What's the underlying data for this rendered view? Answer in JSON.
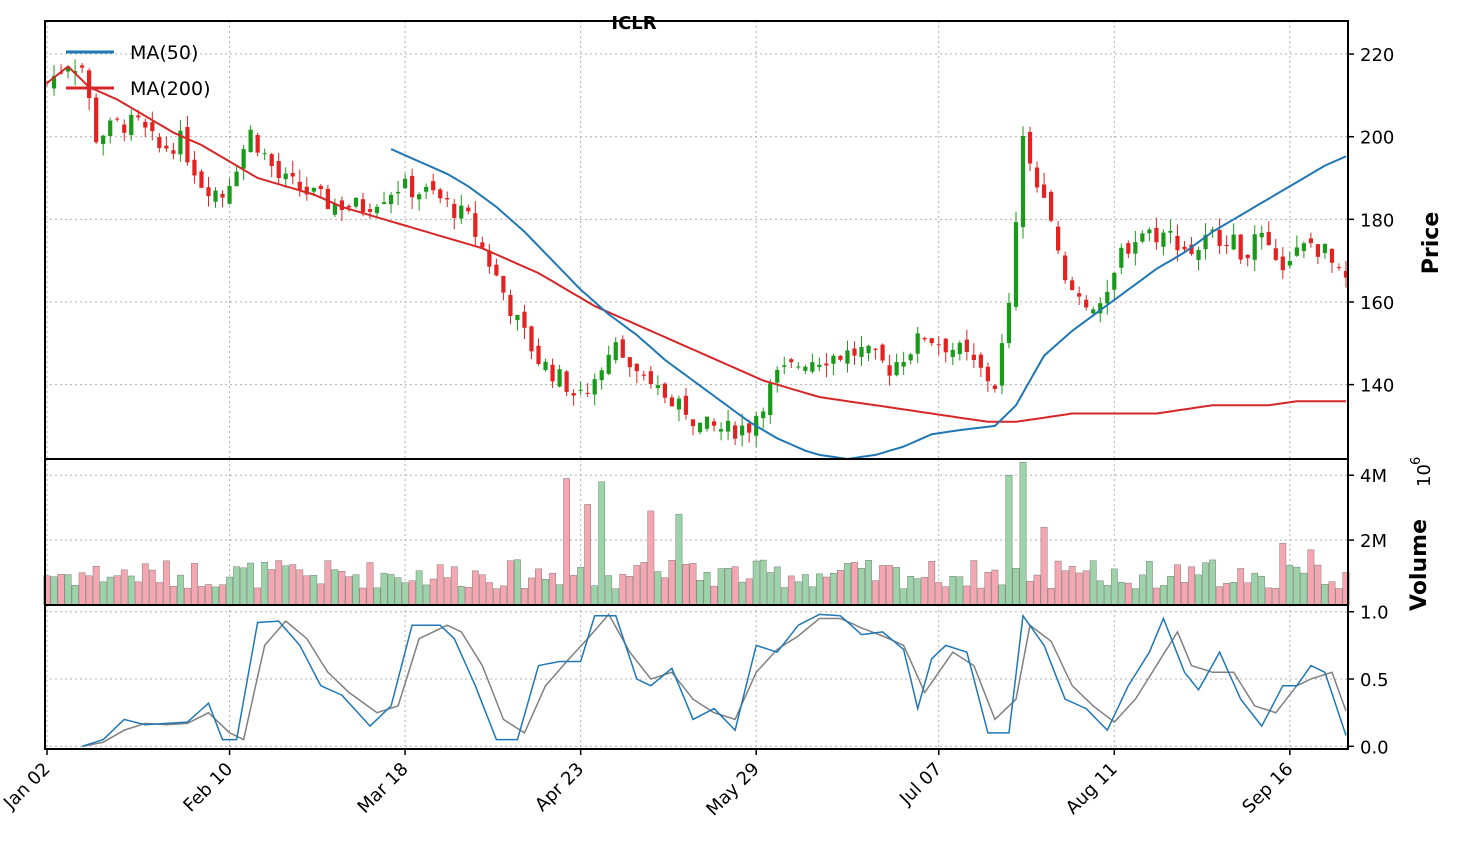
{
  "chart_data": {
    "type": "candlestick",
    "title": "ICLR",
    "colors": {
      "up": "#1a9a1a",
      "down": "#e32222",
      "ma50": "#1f77b4",
      "ma200": "#d62728",
      "vol_up": "#9dd3a8",
      "vol_down": "#f4a7b0",
      "stoch_k": "#1f77b4",
      "stoch_d": "#808080"
    },
    "x_tick_labels": [
      "Jan 02",
      "Feb 10",
      "Mar 18",
      "Apr 23",
      "May 29",
      "Jul 07",
      "Aug 11",
      "Sep 16"
    ],
    "x_tick_index": [
      0,
      26,
      51,
      76,
      101,
      127,
      152,
      177
    ],
    "n_days": 186,
    "price_panel": {
      "ylabel": "Price",
      "ylim": [
        122,
        228
      ],
      "ticks": [
        140,
        160,
        180,
        200,
        220
      ],
      "anchors": [
        [
          0,
          213
        ],
        [
          3,
          218
        ],
        [
          5,
          217
        ],
        [
          7,
          200
        ],
        [
          10,
          203
        ],
        [
          13,
          203
        ],
        [
          16,
          197
        ],
        [
          19,
          199
        ],
        [
          22,
          189
        ],
        [
          25,
          186
        ],
        [
          29,
          201
        ],
        [
          33,
          190
        ],
        [
          40,
          184
        ],
        [
          45,
          183
        ],
        [
          50,
          188
        ],
        [
          55,
          186
        ],
        [
          60,
          180
        ],
        [
          64,
          166
        ],
        [
          67,
          155
        ],
        [
          70,
          146
        ],
        [
          74,
          140
        ],
        [
          77,
          138
        ],
        [
          81,
          149
        ],
        [
          85,
          140
        ],
        [
          90,
          136
        ],
        [
          93,
          130
        ],
        [
          97,
          129
        ],
        [
          100,
          130
        ],
        [
          104,
          142
        ],
        [
          108,
          146
        ],
        [
          112,
          147
        ],
        [
          116,
          148
        ],
        [
          120,
          144
        ],
        [
          125,
          152
        ],
        [
          130,
          148
        ],
        [
          135,
          140
        ],
        [
          137,
          158
        ],
        [
          139,
          200
        ],
        [
          141,
          188
        ],
        [
          143,
          178
        ],
        [
          145,
          164
        ],
        [
          148,
          160
        ],
        [
          151,
          160
        ],
        [
          153,
          172
        ],
        [
          156,
          177
        ],
        [
          160,
          176
        ],
        [
          163,
          172
        ],
        [
          166,
          176
        ],
        [
          168,
          176
        ],
        [
          170,
          172
        ],
        [
          173,
          175
        ],
        [
          175,
          168
        ],
        [
          178,
          172
        ],
        [
          180,
          174
        ],
        [
          182,
          172
        ],
        [
          184,
          166
        ],
        [
          186,
          164
        ]
      ],
      "ma50": [
        [
          0,
          null
        ],
        [
          49,
          197
        ],
        [
          53,
          194
        ],
        [
          57,
          191
        ],
        [
          60,
          188
        ],
        [
          64,
          183
        ],
        [
          68,
          177
        ],
        [
          72,
          170
        ],
        [
          76,
          163
        ],
        [
          80,
          157
        ],
        [
          84,
          152
        ],
        [
          88,
          146
        ],
        [
          92,
          141
        ],
        [
          96,
          136
        ],
        [
          100,
          131
        ],
        [
          104,
          127
        ],
        [
          108,
          124
        ],
        [
          110,
          123
        ],
        [
          114,
          122
        ],
        [
          118,
          123
        ],
        [
          122,
          125
        ],
        [
          126,
          128
        ],
        [
          130,
          129
        ],
        [
          135,
          130
        ],
        [
          138,
          135
        ],
        [
          142,
          147
        ],
        [
          146,
          153
        ],
        [
          150,
          158
        ],
        [
          154,
          163
        ],
        [
          158,
          168
        ],
        [
          162,
          172
        ],
        [
          166,
          177
        ],
        [
          170,
          181
        ],
        [
          174,
          185
        ],
        [
          178,
          189
        ],
        [
          182,
          193
        ],
        [
          186,
          196
        ]
      ],
      "ma200": [
        [
          0,
          213
        ],
        [
          3,
          217
        ],
        [
          6,
          212
        ],
        [
          10,
          209
        ],
        [
          14,
          205
        ],
        [
          18,
          201
        ],
        [
          22,
          198
        ],
        [
          26,
          194
        ],
        [
          30,
          190
        ],
        [
          34,
          188
        ],
        [
          38,
          186
        ],
        [
          42,
          183
        ],
        [
          46,
          181
        ],
        [
          50,
          179
        ],
        [
          54,
          177
        ],
        [
          58,
          175
        ],
        [
          62,
          173
        ],
        [
          66,
          170
        ],
        [
          70,
          167
        ],
        [
          74,
          163
        ],
        [
          78,
          159
        ],
        [
          82,
          156
        ],
        [
          86,
          153
        ],
        [
          90,
          150
        ],
        [
          94,
          147
        ],
        [
          98,
          144
        ],
        [
          102,
          141
        ],
        [
          106,
          139
        ],
        [
          110,
          137
        ],
        [
          114,
          136
        ],
        [
          118,
          135
        ],
        [
          122,
          134
        ],
        [
          126,
          133
        ],
        [
          130,
          132
        ],
        [
          134,
          131
        ],
        [
          138,
          131
        ],
        [
          142,
          132
        ],
        [
          146,
          133
        ],
        [
          150,
          133
        ],
        [
          154,
          133
        ],
        [
          158,
          133
        ],
        [
          162,
          134
        ],
        [
          166,
          135
        ],
        [
          170,
          135
        ],
        [
          174,
          135
        ],
        [
          178,
          136
        ],
        [
          182,
          136
        ],
        [
          186,
          136
        ]
      ],
      "legend": [
        "MA(50)",
        "MA(200)"
      ]
    },
    "volume_panel": {
      "ylabel": "Volume",
      "multiplier_label": "10",
      "multiplier_exponent": "6",
      "ylim": [
        0,
        4.5
      ],
      "ticks": [
        2,
        4
      ],
      "tick_labels": [
        "2M",
        "4M"
      ],
      "spikes": [
        [
          74,
          3.9
        ],
        [
          77,
          3.1
        ],
        [
          79,
          3.8
        ],
        [
          86,
          2.9
        ],
        [
          90,
          2.8
        ],
        [
          137,
          4.0
        ],
        [
          139,
          4.4
        ],
        [
          142,
          2.4
        ],
        [
          176,
          1.9
        ],
        [
          180,
          1.7
        ]
      ]
    },
    "oscillator_panel": {
      "ylim": [
        -0.02,
        1.05
      ],
      "ticks": [
        0.0,
        0.5,
        1.0
      ],
      "tick_labels": [
        "0.0",
        "0.5",
        "1.0"
      ],
      "k_anchors": [
        [
          5,
          0.0
        ],
        [
          8,
          0.05
        ],
        [
          11,
          0.2
        ],
        [
          14,
          0.16
        ],
        [
          17,
          0.17
        ],
        [
          20,
          0.18
        ],
        [
          23,
          0.32
        ],
        [
          25,
          0.05
        ],
        [
          27,
          0.05
        ],
        [
          30,
          0.92
        ],
        [
          33,
          0.93
        ],
        [
          36,
          0.75
        ],
        [
          39,
          0.45
        ],
        [
          42,
          0.38
        ],
        [
          46,
          0.15
        ],
        [
          49,
          0.3
        ],
        [
          52,
          0.9
        ],
        [
          56,
          0.9
        ],
        [
          58,
          0.8
        ],
        [
          61,
          0.45
        ],
        [
          64,
          0.05
        ],
        [
          67,
          0.05
        ],
        [
          70,
          0.6
        ],
        [
          73,
          0.63
        ],
        [
          76,
          0.63
        ],
        [
          78,
          0.97
        ],
        [
          81,
          0.97
        ],
        [
          84,
          0.5
        ],
        [
          86,
          0.45
        ],
        [
          89,
          0.58
        ],
        [
          92,
          0.2
        ],
        [
          95,
          0.28
        ],
        [
          98,
          0.12
        ],
        [
          101,
          0.75
        ],
        [
          104,
          0.7
        ],
        [
          107,
          0.9
        ],
        [
          110,
          0.98
        ],
        [
          113,
          0.97
        ],
        [
          116,
          0.83
        ],
        [
          119,
          0.85
        ],
        [
          122,
          0.72
        ],
        [
          124,
          0.28
        ],
        [
          126,
          0.65
        ],
        [
          128,
          0.75
        ],
        [
          131,
          0.7
        ],
        [
          134,
          0.1
        ],
        [
          137,
          0.1
        ],
        [
          139,
          0.97
        ],
        [
          142,
          0.75
        ],
        [
          145,
          0.35
        ],
        [
          148,
          0.28
        ],
        [
          151,
          0.12
        ],
        [
          154,
          0.45
        ],
        [
          157,
          0.7
        ],
        [
          159,
          0.95
        ],
        [
          162,
          0.55
        ],
        [
          164,
          0.42
        ],
        [
          167,
          0.7
        ],
        [
          170,
          0.35
        ],
        [
          173,
          0.15
        ],
        [
          176,
          0.45
        ],
        [
          178,
          0.45
        ],
        [
          180,
          0.6
        ],
        [
          182,
          0.55
        ],
        [
          185,
          0.08
        ],
        [
          186,
          0.12
        ]
      ],
      "d_anchors": [
        [
          5,
          0.0
        ],
        [
          8,
          0.03
        ],
        [
          11,
          0.12
        ],
        [
          14,
          0.17
        ],
        [
          17,
          0.16
        ],
        [
          20,
          0.17
        ],
        [
          23,
          0.25
        ],
        [
          26,
          0.1
        ],
        [
          28,
          0.05
        ],
        [
          31,
          0.75
        ],
        [
          34,
          0.93
        ],
        [
          37,
          0.8
        ],
        [
          40,
          0.55
        ],
        [
          43,
          0.4
        ],
        [
          47,
          0.25
        ],
        [
          50,
          0.3
        ],
        [
          53,
          0.8
        ],
        [
          57,
          0.9
        ],
        [
          59,
          0.85
        ],
        [
          62,
          0.6
        ],
        [
          65,
          0.2
        ],
        [
          68,
          0.1
        ],
        [
          71,
          0.45
        ],
        [
          74,
          0.63
        ],
        [
          77,
          0.8
        ],
        [
          80,
          0.98
        ],
        [
          83,
          0.7
        ],
        [
          86,
          0.5
        ],
        [
          89,
          0.55
        ],
        [
          92,
          0.35
        ],
        [
          95,
          0.25
        ],
        [
          98,
          0.2
        ],
        [
          101,
          0.55
        ],
        [
          104,
          0.72
        ],
        [
          107,
          0.82
        ],
        [
          110,
          0.95
        ],
        [
          113,
          0.95
        ],
        [
          116,
          0.88
        ],
        [
          119,
          0.82
        ],
        [
          122,
          0.75
        ],
        [
          125,
          0.4
        ],
        [
          127,
          0.55
        ],
        [
          129,
          0.7
        ],
        [
          132,
          0.6
        ],
        [
          135,
          0.2
        ],
        [
          138,
          0.35
        ],
        [
          140,
          0.9
        ],
        [
          143,
          0.78
        ],
        [
          146,
          0.45
        ],
        [
          149,
          0.3
        ],
        [
          152,
          0.18
        ],
        [
          155,
          0.35
        ],
        [
          158,
          0.6
        ],
        [
          161,
          0.85
        ],
        [
          163,
          0.6
        ],
        [
          166,
          0.55
        ],
        [
          169,
          0.55
        ],
        [
          172,
          0.3
        ],
        [
          175,
          0.25
        ],
        [
          178,
          0.45
        ],
        [
          180,
          0.5
        ],
        [
          183,
          0.55
        ],
        [
          186,
          0.12
        ]
      ]
    }
  }
}
